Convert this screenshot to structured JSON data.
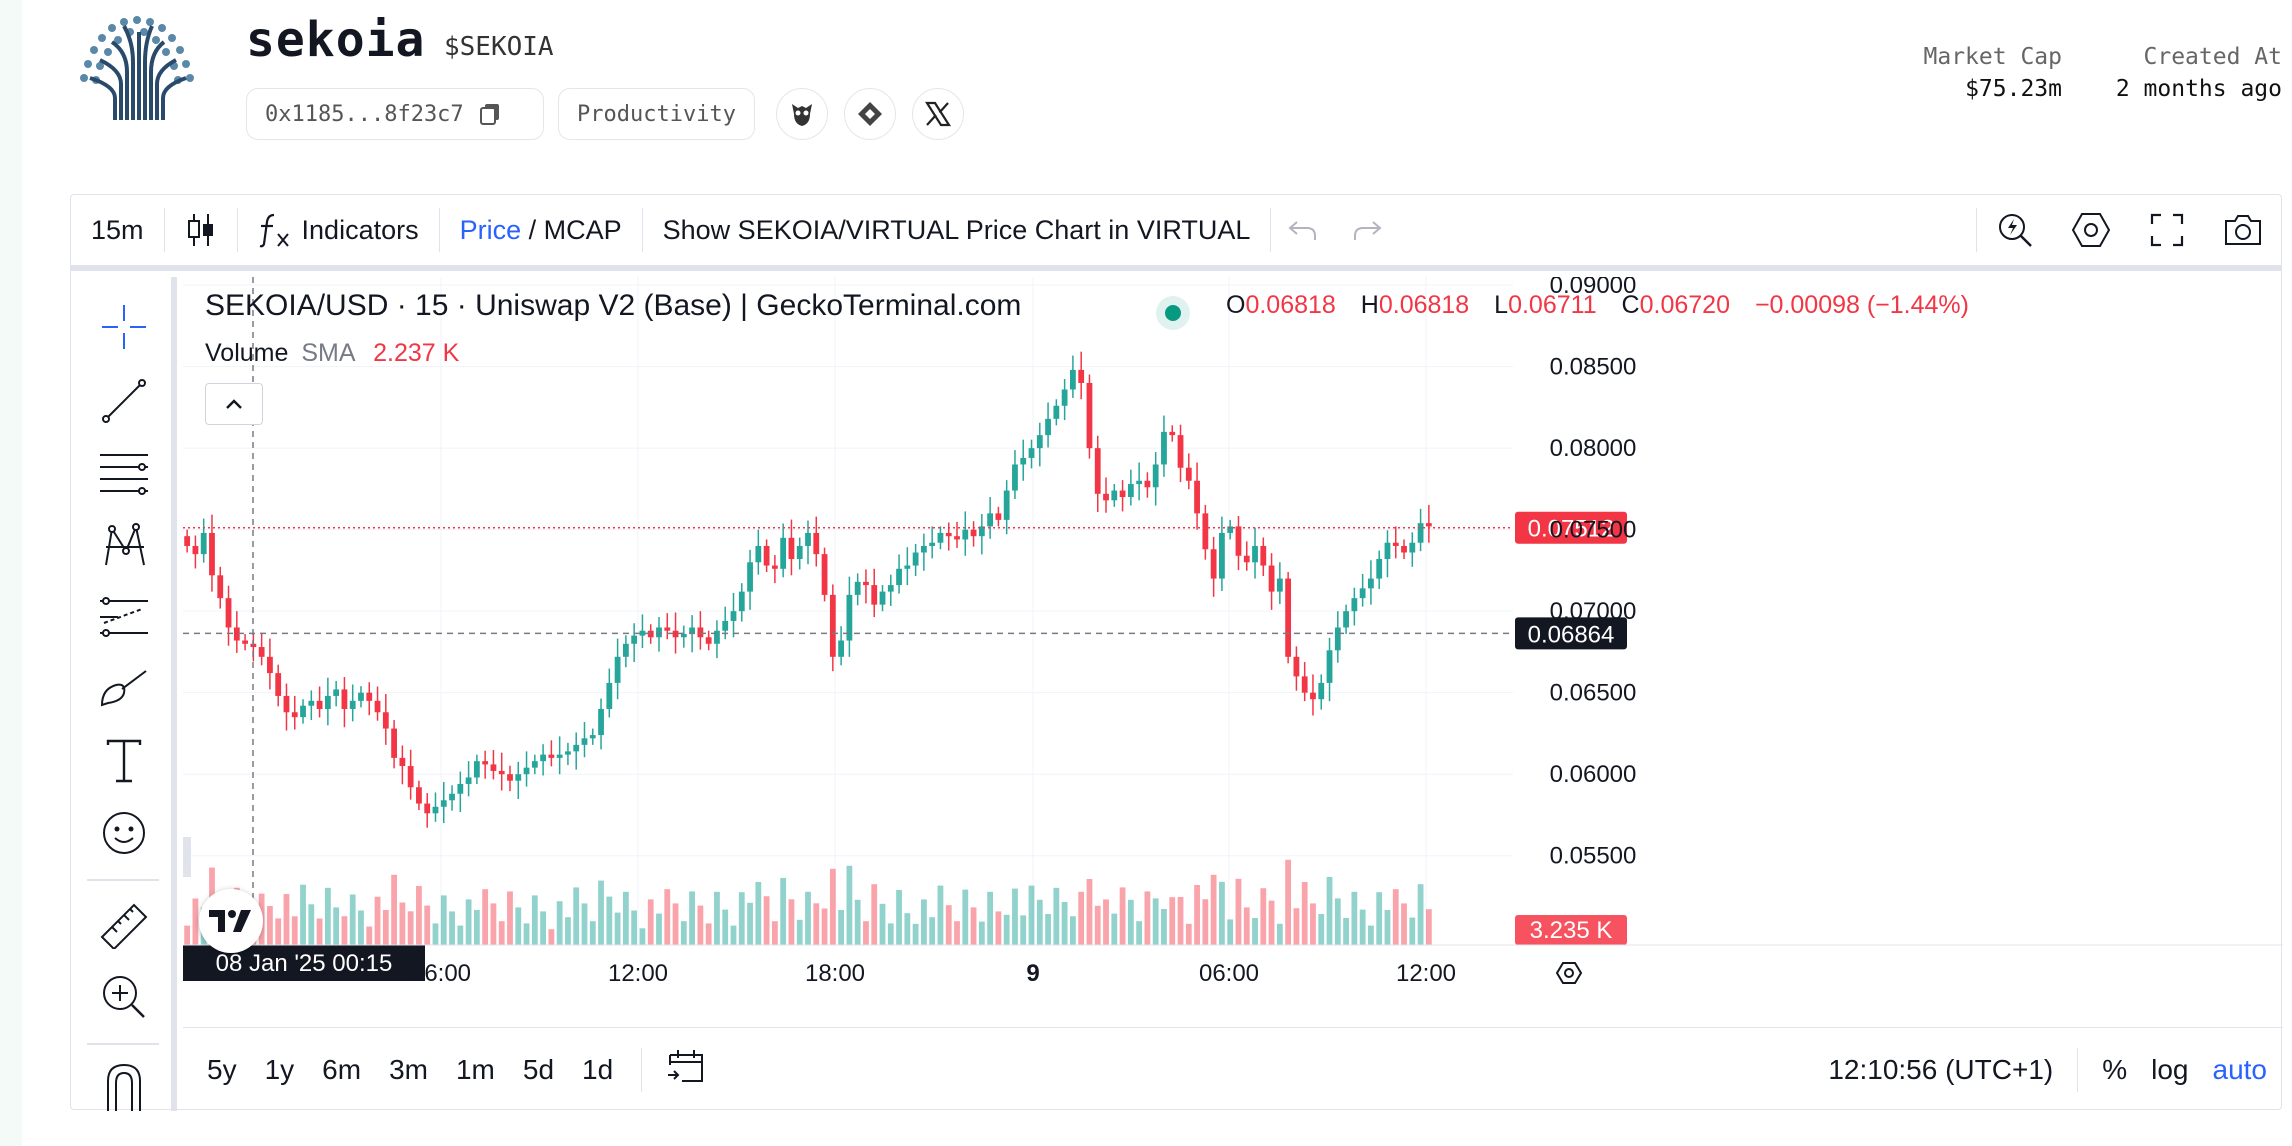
{
  "header": {
    "token_name": "sekoia",
    "token_symbol": "$SEKOIA",
    "address": "0x1185...8f23c7",
    "category": "Productivity",
    "market_cap_label": "Market Cap",
    "market_cap_value": "$75.23m",
    "created_label": "Created At",
    "created_value": "2 months ago"
  },
  "toolbar": {
    "interval": "15m",
    "indicators_label": "Indicators",
    "price_label": "Price",
    "mcap_sep": " / ",
    "mcap_label": "MCAP",
    "show_virtual_label": "Show SEKOIA/VIRTUAL Price Chart in VIRTUAL"
  },
  "legend": {
    "title": "SEKOIA/USD · 15 · Uniswap V2 (Base) | GeckoTerminal.com",
    "o_label": "O",
    "o_value": "0.06818",
    "h_label": "H",
    "h_value": "0.06818",
    "l_label": "L",
    "l_value": "0.06711",
    "c_label": "C",
    "c_value": "0.06720",
    "change": "−0.00098 (−1.44%)",
    "volume_label": "Volume",
    "sma_label": "SMA",
    "volume_value": "2.237 K"
  },
  "price_axis": {
    "ticks": [
      "0.09000",
      "0.08500",
      "0.08000",
      "0.07500",
      "0.07000",
      "0.06500",
      "0.06000",
      "0.05500"
    ],
    "last_price_label": "0.07512",
    "crosshair_price_label": "0.06864",
    "volume_label": "3.235 K"
  },
  "time_axis": {
    "ticks": [
      "06:00",
      "12:00",
      "18:00",
      "9",
      "06:00",
      "12:00"
    ],
    "crosshair_label": "08 Jan '25   00:15"
  },
  "bottom": {
    "ranges": [
      "5y",
      "1y",
      "6m",
      "3m",
      "1m",
      "5d",
      "1d"
    ],
    "clock": "12:10:56 (UTC+1)",
    "percent": "%",
    "log": "log",
    "auto": "auto"
  },
  "colors": {
    "up": "#26a69a",
    "down": "#f23645",
    "accent": "#2962ff",
    "crosshair_label_bg": "#131722"
  },
  "chart_data": {
    "type": "candlestick",
    "series": [
      {
        "name": "SEKOIA/USD",
        "ohlc_close_path": [
          0.074,
          0.0735,
          0.0748,
          0.0722,
          0.0708,
          0.069,
          0.0682,
          0.068,
          0.0678,
          0.0672,
          0.0662,
          0.0648,
          0.0638,
          0.0635,
          0.0642,
          0.0645,
          0.064,
          0.0648,
          0.0652,
          0.064,
          0.0645,
          0.065,
          0.0645,
          0.0638,
          0.0628,
          0.061,
          0.0605,
          0.0592,
          0.0582,
          0.0576,
          0.058,
          0.0584,
          0.0588,
          0.0594,
          0.0598,
          0.0608,
          0.0606,
          0.0602,
          0.06,
          0.0596,
          0.06,
          0.0604,
          0.0608,
          0.0612,
          0.061,
          0.0612,
          0.0614,
          0.0618,
          0.0622,
          0.0624,
          0.064,
          0.0656,
          0.0672,
          0.068,
          0.0685,
          0.0688,
          0.0684,
          0.069,
          0.0688,
          0.0684,
          0.0686,
          0.069,
          0.0684,
          0.068,
          0.0688,
          0.0694,
          0.07,
          0.0712,
          0.073,
          0.074,
          0.0728,
          0.0726,
          0.0745,
          0.0732,
          0.074,
          0.0748,
          0.0735,
          0.071,
          0.0672,
          0.0682,
          0.071,
          0.0718,
          0.0716,
          0.0704,
          0.0712,
          0.0716,
          0.0726,
          0.0728,
          0.0736,
          0.074,
          0.0742,
          0.0748,
          0.0746,
          0.0744,
          0.075,
          0.0746,
          0.0752,
          0.076,
          0.0756,
          0.0774,
          0.079,
          0.0794,
          0.08,
          0.0808,
          0.0818,
          0.0826,
          0.0836,
          0.0848,
          0.084,
          0.08,
          0.0772,
          0.0768,
          0.0774,
          0.077,
          0.0778,
          0.078,
          0.0776,
          0.079,
          0.081,
          0.0808,
          0.0788,
          0.078,
          0.076,
          0.0738,
          0.072,
          0.0748,
          0.0752,
          0.0734,
          0.073,
          0.074,
          0.0728,
          0.0712,
          0.072,
          0.0672,
          0.066,
          0.065,
          0.0646,
          0.0656,
          0.0676,
          0.069,
          0.07,
          0.0708,
          0.0714,
          0.072,
          0.0732,
          0.0742,
          0.074,
          0.0736,
          0.0742,
          0.0754,
          0.0752
        ]
      }
    ],
    "y_range": [
      0.054,
      0.0905
    ],
    "x_ticks": [
      "06:00",
      "12:00",
      "18:00",
      "9",
      "06:00",
      "12:00"
    ],
    "last_price": 0.07512,
    "crosshair_price": 0.06864,
    "grid": true
  }
}
